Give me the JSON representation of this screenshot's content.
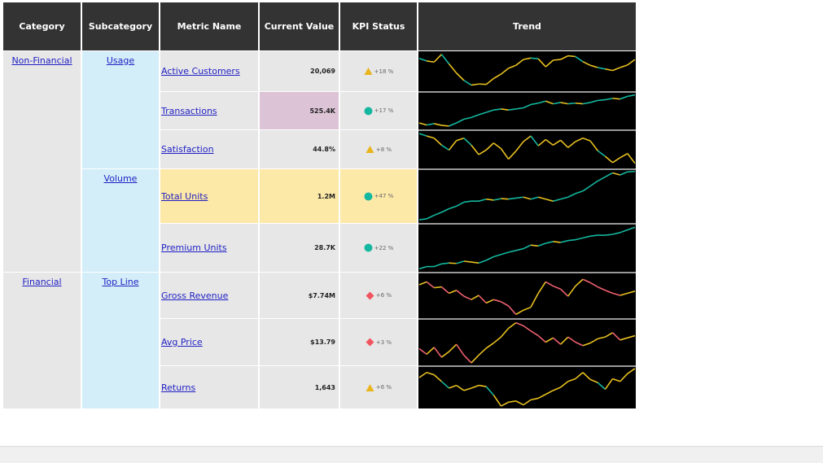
{
  "table": {
    "headers": [
      "Category",
      "Subcategory",
      "Metric Name",
      "Current Value",
      "KPI Status",
      "Trend"
    ],
    "categories": [
      "Non-Financial",
      "Financial"
    ],
    "subcategories": [
      "Usage",
      "Volume",
      "Top Line"
    ],
    "rows": [
      {
        "name": "Active Customers",
        "value": "20,069",
        "kpi": "+18 %",
        "shape": "triangle",
        "highlight": "grey",
        "trend": [
          0.85,
          0.78,
          0.75,
          0.96,
          0.7,
          0.45,
          0.25,
          0.12,
          0.15,
          0.14,
          0.3,
          0.42,
          0.58,
          0.66,
          0.82,
          0.86,
          0.84,
          0.62,
          0.8,
          0.82,
          0.92,
          0.9,
          0.76,
          0.66,
          0.6,
          0.56,
          0.52,
          0.6,
          0.67,
          0.82
        ]
      },
      {
        "name": "Transactions",
        "value": "525.4K",
        "kpi": "+17 %",
        "shape": "circle",
        "highlight": "purple",
        "trend": [
          0.14,
          0.08,
          0.12,
          0.07,
          0.05,
          0.14,
          0.25,
          0.3,
          0.38,
          0.45,
          0.52,
          0.55,
          0.52,
          0.55,
          0.58,
          0.68,
          0.72,
          0.78,
          0.7,
          0.74,
          0.7,
          0.72,
          0.7,
          0.74,
          0.8,
          0.82,
          0.86,
          0.84,
          0.92,
          0.96
        ]
      },
      {
        "name": "Satisfaction",
        "value": "44.8%",
        "kpi": "+8 %",
        "shape": "triangle",
        "highlight": "grey",
        "trend": [
          0.95,
          0.88,
          0.82,
          0.62,
          0.48,
          0.75,
          0.82,
          0.62,
          0.35,
          0.48,
          0.68,
          0.52,
          0.22,
          0.45,
          0.72,
          0.88,
          0.6,
          0.78,
          0.62,
          0.76,
          0.55,
          0.72,
          0.82,
          0.74,
          0.46,
          0.3,
          0.12,
          0.26,
          0.38,
          0.1
        ]
      },
      {
        "name": "Total Units",
        "value": "1.2M",
        "kpi": "+47 %",
        "shape": "circle",
        "highlight": "yellow",
        "trend": [
          0.03,
          0.05,
          0.12,
          0.18,
          0.25,
          0.3,
          0.38,
          0.4,
          0.4,
          0.44,
          0.42,
          0.45,
          0.44,
          0.46,
          0.48,
          0.44,
          0.48,
          0.44,
          0.4,
          0.44,
          0.48,
          0.55,
          0.6,
          0.7,
          0.8,
          0.88,
          0.96,
          0.92,
          0.98,
          0.99
        ]
      },
      {
        "name": "Premium Units",
        "value": "28.7K",
        "kpi": "+22 %",
        "shape": "circle",
        "highlight": "grey",
        "trend": [
          0.03,
          0.08,
          0.08,
          0.14,
          0.16,
          0.15,
          0.2,
          0.18,
          0.16,
          0.22,
          0.3,
          0.35,
          0.4,
          0.44,
          0.48,
          0.56,
          0.54,
          0.6,
          0.64,
          0.62,
          0.66,
          0.68,
          0.72,
          0.76,
          0.78,
          0.78,
          0.8,
          0.84,
          0.9,
          0.96
        ]
      },
      {
        "name": "Gross Revenue",
        "value": "$7.74M",
        "kpi": "+6 %",
        "shape": "diamond",
        "highlight": "grey",
        "trend": [
          0.75,
          0.82,
          0.68,
          0.7,
          0.55,
          0.62,
          0.48,
          0.4,
          0.5,
          0.32,
          0.4,
          0.35,
          0.25,
          0.05,
          0.15,
          0.22,
          0.55,
          0.82,
          0.72,
          0.65,
          0.48,
          0.72,
          0.88,
          0.8,
          0.7,
          0.62,
          0.55,
          0.5,
          0.55,
          0.6
        ]
      },
      {
        "name": "Avg Price",
        "value": "$13.79",
        "kpi": "+3 %",
        "shape": "diamond",
        "highlight": "grey",
        "trend": [
          0.35,
          0.22,
          0.38,
          0.15,
          0.28,
          0.45,
          0.2,
          0.02,
          0.2,
          0.36,
          0.48,
          0.62,
          0.82,
          0.95,
          0.88,
          0.76,
          0.65,
          0.5,
          0.6,
          0.45,
          0.62,
          0.5,
          0.42,
          0.48,
          0.58,
          0.62,
          0.72,
          0.55,
          0.6,
          0.65
        ]
      },
      {
        "name": "Returns",
        "value": "1,643",
        "kpi": "+6 %",
        "shape": "triangle",
        "highlight": "grey",
        "trend": [
          0.75,
          0.88,
          0.82,
          0.65,
          0.48,
          0.55,
          0.42,
          0.48,
          0.55,
          0.52,
          0.3,
          0.02,
          0.12,
          0.15,
          0.05,
          0.18,
          0.22,
          0.32,
          0.42,
          0.5,
          0.65,
          0.72,
          0.88,
          0.7,
          0.62,
          0.45,
          0.72,
          0.65,
          0.85,
          0.98
        ]
      }
    ]
  },
  "colors": {
    "triangle": "#e8b51c",
    "circle": "#14b8a0",
    "diamond": "#f0555f",
    "trend_up": "#e8c020",
    "trend_teal": "#14b8a0",
    "trend_red": "#f06070"
  }
}
